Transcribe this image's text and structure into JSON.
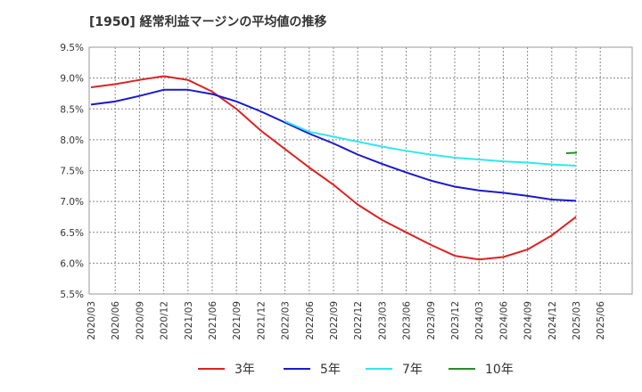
{
  "chart_data": {
    "type": "line",
    "title": "[1950]  経常利益マージンの平均値の推移",
    "xlabel": "",
    "ylabel": "",
    "ylim": [
      5.5,
      9.5
    ],
    "yticks": [
      "5.5%",
      "6.0%",
      "6.5%",
      "7.0%",
      "7.5%",
      "8.0%",
      "8.5%",
      "9.0%",
      "9.5%"
    ],
    "categories": [
      "2020/03",
      "2020/06",
      "2020/09",
      "2020/12",
      "2021/03",
      "2021/06",
      "2021/09",
      "2021/12",
      "2022/03",
      "2022/06",
      "2022/09",
      "2022/12",
      "2023/03",
      "2023/06",
      "2023/09",
      "2023/12",
      "2024/03",
      "2024/06",
      "2024/09",
      "2024/12",
      "2025/03",
      "2025/06"
    ],
    "grid": true,
    "legend_position": "bottom",
    "series": [
      {
        "name": "3年",
        "color": "#dd2222",
        "values": [
          8.85,
          8.9,
          8.97,
          9.03,
          8.97,
          8.78,
          8.5,
          8.15,
          7.85,
          7.55,
          7.27,
          6.95,
          6.7,
          6.5,
          6.3,
          6.12,
          6.06,
          6.1,
          6.22,
          6.45,
          6.75,
          null
        ]
      },
      {
        "name": "5年",
        "color": "#1a1acc",
        "values": [
          8.57,
          8.62,
          8.71,
          8.81,
          8.81,
          8.74,
          8.62,
          8.46,
          8.28,
          8.1,
          7.94,
          7.76,
          7.61,
          7.47,
          7.34,
          7.24,
          7.18,
          7.14,
          7.09,
          7.03,
          7.01,
          null
        ]
      },
      {
        "name": "7年",
        "color": "#33e6ee",
        "values": [
          null,
          null,
          null,
          null,
          null,
          null,
          null,
          null,
          8.3,
          8.13,
          8.05,
          7.97,
          7.89,
          7.82,
          7.76,
          7.71,
          7.68,
          7.65,
          7.63,
          7.6,
          7.58,
          null
        ]
      },
      {
        "name": "10年",
        "color": "#2a8a2a",
        "values": [
          null,
          null,
          null,
          null,
          null,
          null,
          null,
          null,
          null,
          null,
          null,
          null,
          null,
          null,
          null,
          null,
          null,
          null,
          null,
          null,
          7.79,
          null
        ]
      }
    ]
  }
}
